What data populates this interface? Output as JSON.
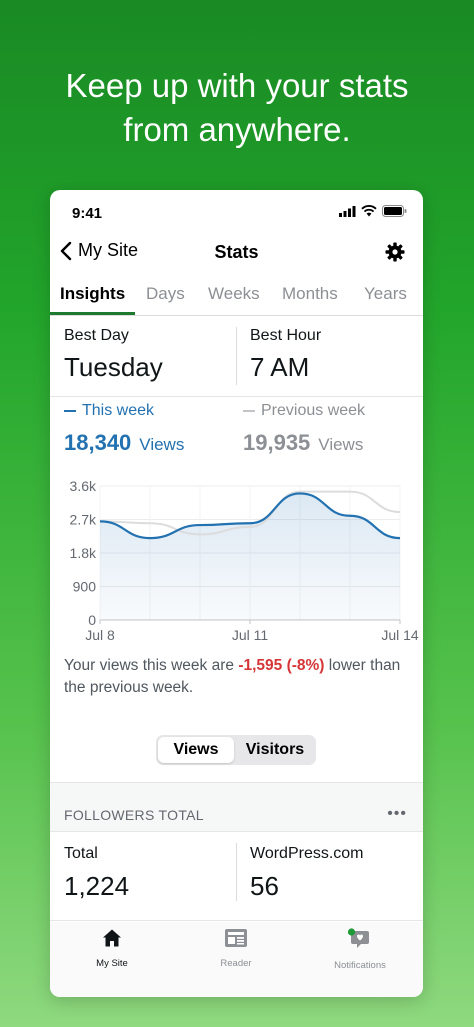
{
  "headline": {
    "line1": "Keep up with your stats",
    "line2": "from anywhere."
  },
  "statusbar": {
    "time": "9:41"
  },
  "nav": {
    "back_label": "My Site",
    "title": "Stats"
  },
  "tabs": [
    {
      "label": "Insights",
      "active": true
    },
    {
      "label": "Days",
      "active": false
    },
    {
      "label": "Weeks",
      "active": false
    },
    {
      "label": "Months",
      "active": false
    },
    {
      "label": "Years",
      "active": false
    }
  ],
  "best": {
    "day_label": "Best Day",
    "day_value": "Tuesday",
    "hour_label": "Best Hour",
    "hour_value": "7 AM"
  },
  "compare": {
    "this_week_label": "This week",
    "this_week_value": "18,340",
    "this_week_unit": "Views",
    "prev_week_label": "Previous week",
    "prev_week_value": "19,935",
    "prev_week_unit": "Views"
  },
  "colors": {
    "this_week": "#2271b1",
    "prev_week": "#a7aaad",
    "negative": "#d63638",
    "accent": "#1d7a2f"
  },
  "chart_data": {
    "type": "line",
    "y_ticks": [
      "3.6k",
      "2.7k",
      "1.8k",
      "900",
      "0"
    ],
    "x_ticks": [
      "Jul 8",
      "Jul 11",
      "Jul 14"
    ],
    "ylim": [
      0,
      3600
    ],
    "x": [
      "Jul 8",
      "Jul 9",
      "Jul 10",
      "Jul 11",
      "Jul 12",
      "Jul 13",
      "Jul 14"
    ],
    "series": [
      {
        "name": "This week",
        "values": [
          2650,
          2200,
          2550,
          2600,
          3400,
          2800,
          2200
        ]
      },
      {
        "name": "Previous week",
        "values": [
          2650,
          2600,
          2300,
          2500,
          3450,
          3450,
          2900
        ]
      }
    ],
    "grid": true
  },
  "summary": {
    "prefix": "Your views this week are ",
    "delta": "-1,595 (-8%)",
    "suffix": " lower than the previous week."
  },
  "segment": {
    "views": "Views",
    "visitors": "Visitors"
  },
  "followers": {
    "header": "FOLLOWERS TOTAL",
    "more": "•••",
    "total_label": "Total",
    "total_value": "1,224",
    "wp_label": "WordPress.com",
    "wp_value": "56"
  },
  "tabbar": [
    {
      "label": "My Site",
      "icon": "home-icon",
      "active": true
    },
    {
      "label": "Reader",
      "icon": "reader-icon",
      "active": false
    },
    {
      "label": "Notifications",
      "icon": "notifications-icon",
      "active": false
    }
  ]
}
